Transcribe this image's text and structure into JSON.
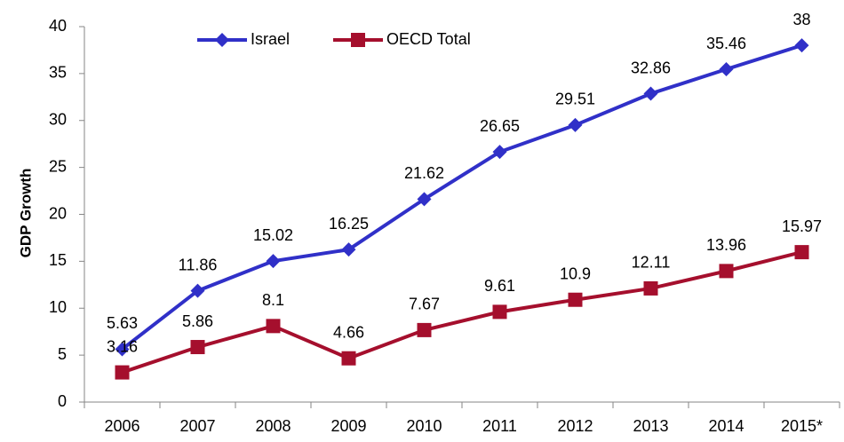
{
  "chart_data": {
    "type": "line",
    "y_label": "GDP Growth",
    "categories": [
      "2006",
      "2007",
      "2008",
      "2009",
      "2010",
      "2011",
      "2012",
      "2013",
      "2014",
      "2015*"
    ],
    "series": [
      {
        "name": "Israel",
        "color": "#3030c8",
        "marker": "diamond",
        "values": [
          5.63,
          11.86,
          15.02,
          16.25,
          21.62,
          26.65,
          29.51,
          32.86,
          35.46,
          38
        ]
      },
      {
        "name": "OECD Total",
        "color": "#a50f2d",
        "marker": "square",
        "values": [
          3.16,
          5.86,
          8.1,
          4.66,
          7.67,
          9.61,
          10.9,
          12.11,
          13.96,
          15.97
        ]
      }
    ],
    "ylim": [
      0,
      40
    ],
    "yticks": [
      0,
      5,
      10,
      15,
      20,
      25,
      30,
      35,
      40
    ],
    "grid": false,
    "legend": "top"
  }
}
